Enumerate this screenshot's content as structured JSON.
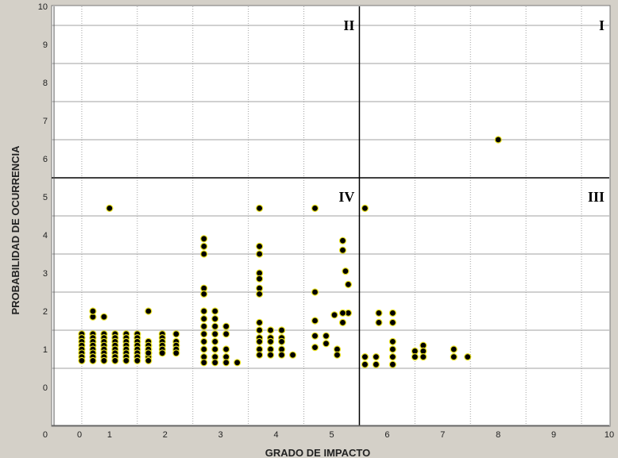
{
  "chart_data": {
    "type": "scatter",
    "title": "",
    "xlabel": "GRADO DE IMPACTO",
    "ylabel": "PROBABILIDAD DE OCURRENCIA",
    "xlim": [
      0,
      10
    ],
    "ylim": [
      0,
      10
    ],
    "x_ticks": [
      "0",
      "1",
      "2",
      "3",
      "4",
      "5",
      "6",
      "7",
      "8",
      "9",
      "10"
    ],
    "y_ticks": [
      "0",
      "1",
      "2",
      "3",
      "4",
      "5",
      "6",
      "7",
      "8",
      "9",
      "10"
    ],
    "grid": true,
    "quadrants": [
      {
        "label": "I",
        "x": 10,
        "y": 10
      },
      {
        "label": "II",
        "x": 5.5,
        "y": 10
      },
      {
        "label": "III",
        "x": 10,
        "y": 5.5
      },
      {
        "label": "IV",
        "x": 5.5,
        "y": 5.5
      }
    ],
    "colors": {
      "point_fill": "#000000",
      "point_stroke": "#e8e020",
      "grid": "#a0a0a0",
      "divider": "#000000",
      "plot_bg": "#ffffff",
      "frame_bg": "#d4d0c8"
    },
    "points": [
      [
        1.0,
        4.7
      ],
      [
        8.0,
        6.5
      ],
      [
        0.5,
        1.4
      ],
      [
        0.5,
        1.3
      ],
      [
        0.5,
        1.2
      ],
      [
        0.5,
        1.1
      ],
      [
        0.5,
        1.0
      ],
      [
        0.5,
        0.9
      ],
      [
        0.5,
        0.8
      ],
      [
        0.5,
        0.7
      ],
      [
        0.7,
        1.4
      ],
      [
        0.7,
        1.3
      ],
      [
        0.7,
        1.2
      ],
      [
        0.7,
        1.1
      ],
      [
        0.7,
        1.0
      ],
      [
        0.7,
        0.9
      ],
      [
        0.7,
        0.8
      ],
      [
        0.7,
        0.7
      ],
      [
        0.7,
        1.85
      ],
      [
        0.7,
        2.0
      ],
      [
        0.9,
        1.4
      ],
      [
        0.9,
        1.3
      ],
      [
        0.9,
        1.2
      ],
      [
        0.9,
        1.1
      ],
      [
        0.9,
        1.0
      ],
      [
        0.9,
        0.9
      ],
      [
        0.9,
        0.8
      ],
      [
        0.9,
        0.7
      ],
      [
        0.9,
        1.85
      ],
      [
        1.1,
        1.4
      ],
      [
        1.1,
        1.3
      ],
      [
        1.1,
        1.2
      ],
      [
        1.1,
        1.1
      ],
      [
        1.1,
        1.0
      ],
      [
        1.1,
        0.9
      ],
      [
        1.1,
        0.8
      ],
      [
        1.1,
        0.7
      ],
      [
        1.3,
        1.4
      ],
      [
        1.3,
        1.3
      ],
      [
        1.3,
        1.2
      ],
      [
        1.3,
        1.1
      ],
      [
        1.3,
        1.0
      ],
      [
        1.3,
        0.9
      ],
      [
        1.3,
        0.8
      ],
      [
        1.3,
        0.7
      ],
      [
        1.5,
        1.4
      ],
      [
        1.5,
        1.3
      ],
      [
        1.5,
        1.2
      ],
      [
        1.5,
        1.1
      ],
      [
        1.5,
        1.0
      ],
      [
        1.5,
        0.9
      ],
      [
        1.5,
        0.8
      ],
      [
        1.5,
        0.7
      ],
      [
        1.7,
        1.1
      ],
      [
        1.7,
        1.0
      ],
      [
        1.7,
        0.9
      ],
      [
        1.7,
        0.8
      ],
      [
        1.7,
        0.7
      ],
      [
        1.7,
        2.0
      ],
      [
        1.7,
        1.2
      ],
      [
        1.7,
        1.1
      ],
      [
        1.7,
        1.0
      ],
      [
        1.7,
        0.9
      ],
      [
        1.95,
        1.4
      ],
      [
        1.95,
        1.3
      ],
      [
        1.95,
        1.2
      ],
      [
        1.95,
        1.1
      ],
      [
        1.95,
        1.0
      ],
      [
        1.95,
        0.9
      ],
      [
        2.2,
        1.4
      ],
      [
        2.2,
        1.2
      ],
      [
        2.2,
        1.1
      ],
      [
        2.2,
        1.0
      ],
      [
        2.2,
        0.9
      ],
      [
        2.7,
        3.9
      ],
      [
        2.7,
        3.7
      ],
      [
        2.7,
        3.5
      ],
      [
        2.7,
        2.6
      ],
      [
        2.7,
        2.45
      ],
      [
        2.7,
        2.0
      ],
      [
        2.7,
        1.8
      ],
      [
        2.7,
        1.6
      ],
      [
        2.7,
        1.4
      ],
      [
        2.7,
        1.2
      ],
      [
        2.7,
        1.0
      ],
      [
        2.7,
        0.8
      ],
      [
        2.7,
        0.65
      ],
      [
        2.9,
        2.0
      ],
      [
        2.9,
        1.8
      ],
      [
        2.9,
        1.6
      ],
      [
        2.9,
        1.4
      ],
      [
        2.9,
        1.2
      ],
      [
        2.9,
        1.0
      ],
      [
        2.9,
        0.8
      ],
      [
        2.9,
        0.65
      ],
      [
        3.1,
        1.6
      ],
      [
        3.1,
        1.4
      ],
      [
        3.1,
        1.0
      ],
      [
        3.1,
        0.8
      ],
      [
        3.1,
        0.65
      ],
      [
        3.3,
        0.65
      ],
      [
        3.7,
        4.7
      ],
      [
        3.7,
        3.7
      ],
      [
        3.7,
        3.5
      ],
      [
        3.7,
        3.0
      ],
      [
        3.7,
        2.85
      ],
      [
        3.7,
        2.6
      ],
      [
        3.7,
        2.45
      ],
      [
        3.7,
        1.7
      ],
      [
        3.7,
        1.5
      ],
      [
        3.7,
        1.3
      ],
      [
        3.7,
        1.2
      ],
      [
        3.7,
        1.0
      ],
      [
        3.7,
        0.85
      ],
      [
        3.9,
        1.5
      ],
      [
        3.9,
        1.3
      ],
      [
        3.9,
        1.2
      ],
      [
        3.9,
        1.0
      ],
      [
        3.9,
        0.85
      ],
      [
        4.1,
        1.5
      ],
      [
        4.1,
        1.3
      ],
      [
        4.1,
        1.2
      ],
      [
        4.1,
        1.0
      ],
      [
        4.1,
        0.85
      ],
      [
        4.3,
        0.85
      ],
      [
        4.7,
        4.7
      ],
      [
        4.7,
        2.5
      ],
      [
        4.7,
        1.75
      ],
      [
        4.7,
        1.35
      ],
      [
        4.7,
        1.05
      ],
      [
        4.9,
        1.35
      ],
      [
        4.9,
        1.15
      ],
      [
        5.05,
        1.9
      ],
      [
        5.1,
        1.0
      ],
      [
        5.1,
        0.85
      ],
      [
        5.3,
        1.95
      ],
      [
        5.6,
        4.7
      ],
      [
        5.2,
        3.85
      ],
      [
        5.2,
        3.6
      ],
      [
        5.25,
        3.05
      ],
      [
        5.3,
        2.7
      ],
      [
        5.2,
        1.95
      ],
      [
        5.2,
        1.7
      ],
      [
        5.6,
        0.8
      ],
      [
        5.6,
        0.6
      ],
      [
        5.8,
        0.8
      ],
      [
        5.8,
        0.6
      ],
      [
        5.85,
        1.95
      ],
      [
        5.85,
        1.7
      ],
      [
        6.1,
        1.95
      ],
      [
        6.1,
        1.7
      ],
      [
        6.1,
        1.2
      ],
      [
        6.1,
        1.0
      ],
      [
        6.1,
        0.8
      ],
      [
        6.1,
        0.6
      ],
      [
        6.5,
        0.95
      ],
      [
        6.5,
        0.8
      ],
      [
        6.65,
        1.1
      ],
      [
        6.65,
        0.95
      ],
      [
        6.65,
        0.8
      ],
      [
        7.2,
        1.0
      ],
      [
        7.2,
        0.8
      ],
      [
        7.45,
        0.8
      ]
    ]
  }
}
